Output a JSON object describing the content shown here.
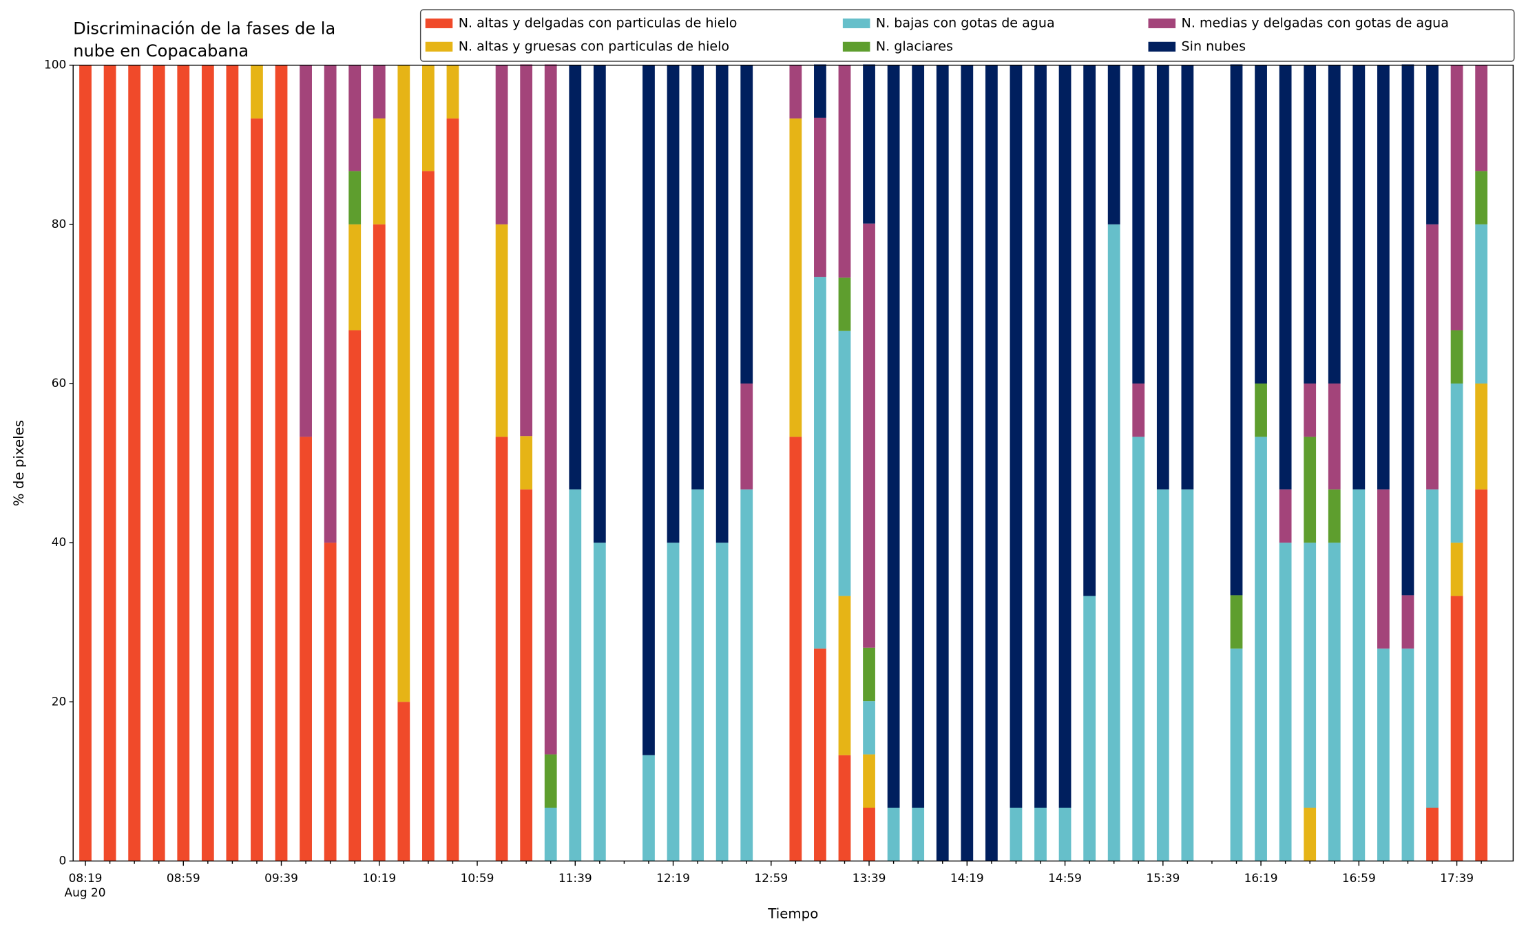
{
  "chart_data": {
    "type": "stacked_bar",
    "title": [
      "Discriminación de la fases de la",
      "nube en Copacabana"
    ],
    "xlabel": "Tiempo",
    "ylabel": "% de pixeles",
    "x_sublabel": "Aug 20",
    "categories": [
      "08:19",
      null,
      null,
      null,
      "08:59",
      null,
      null,
      null,
      "09:39",
      null,
      null,
      null,
      "10:19",
      null,
      null,
      null,
      "10:59",
      null,
      null,
      null,
      "11:39",
      null,
      null,
      null,
      "12:19",
      null,
      null,
      null,
      "12:59",
      null,
      null,
      null,
      "13:39",
      null,
      null,
      null,
      "14:19",
      null,
      null,
      null,
      "14:59",
      null,
      null,
      null,
      "15:39",
      null,
      null,
      null,
      "16:19",
      null,
      null,
      null,
      "16:59",
      null,
      null,
      null,
      "17:39",
      null
    ],
    "xlim": [
      -0.5,
      58.3
    ],
    "ylim": [
      0,
      100
    ],
    "yticks": [
      0,
      20,
      40,
      60,
      80,
      100
    ],
    "legend": "upper right",
    "series": [
      {
        "name": "N. altas y delgadas con particulas de hielo",
        "color": "#f04a2a",
        "values": [
          100,
          100,
          100,
          100,
          100,
          100,
          100,
          93.3,
          100,
          53.3,
          40,
          66.7,
          80,
          20,
          86.7,
          93.3,
          0,
          53.3,
          46.7,
          0,
          0,
          0,
          0,
          0,
          0,
          0,
          0,
          0,
          0,
          53.3,
          26.7,
          13.3,
          6.7,
          0,
          0,
          0,
          0,
          0,
          0,
          0,
          0,
          0,
          0,
          0,
          0,
          0,
          0,
          0,
          0,
          0,
          0,
          0,
          0,
          0,
          0,
          6.7,
          33.3,
          46.7
        ]
      },
      {
        "name": "N. altas y gruesas con particulas de hielo",
        "color": "#e6b416",
        "values": [
          0,
          0,
          0,
          0,
          0,
          0,
          0,
          6.7,
          0,
          0,
          0,
          13.3,
          13.3,
          80,
          13.3,
          6.7,
          0,
          26.7,
          6.7,
          0,
          0,
          0,
          0,
          0,
          0,
          0,
          0,
          0,
          0,
          40,
          0,
          20,
          6.7,
          0,
          0,
          0,
          0,
          0,
          0,
          0,
          0,
          0,
          0,
          0,
          0,
          0,
          0,
          0,
          0,
          0,
          6.7,
          0,
          0,
          0,
          0,
          0,
          6.7,
          13.3
        ]
      },
      {
        "name": "N. bajas con gotas de agua",
        "color": "#66bfca",
        "values": [
          0,
          0,
          0,
          0,
          0,
          0,
          0,
          0,
          0,
          0,
          0,
          0,
          0,
          0,
          0,
          0,
          0,
          0,
          0,
          6.7,
          46.7,
          40,
          0,
          13.3,
          40,
          46.7,
          40,
          46.7,
          0,
          0,
          46.7,
          33.3,
          6.7,
          6.7,
          6.7,
          0,
          0,
          0,
          6.7,
          6.7,
          6.7,
          33.3,
          80,
          53.3,
          46.7,
          46.7,
          0,
          26.7,
          53.3,
          40,
          33.3,
          40,
          46.7,
          26.7,
          26.7,
          40,
          20,
          20
        ]
      },
      {
        "name": "N. glaciares",
        "color": "#5e9e2e",
        "values": [
          0,
          0,
          0,
          0,
          0,
          0,
          0,
          0,
          0,
          0,
          0,
          6.7,
          0,
          0,
          0,
          0,
          0,
          0,
          0,
          6.7,
          0,
          0,
          0,
          0,
          0,
          0,
          0,
          0,
          0,
          0,
          0,
          6.7,
          6.7,
          0,
          0,
          0,
          0,
          0,
          0,
          0,
          0,
          0,
          0,
          0,
          0,
          0,
          0,
          6.7,
          6.7,
          0,
          13.3,
          6.7,
          0,
          0,
          0,
          0,
          6.7,
          6.7
        ]
      },
      {
        "name": "N. medias y delgadas con gotas de agua",
        "color": "#a3447a",
        "values": [
          0,
          0,
          0,
          0,
          0,
          0,
          0,
          0,
          0,
          46.7,
          60,
          13.3,
          6.7,
          0,
          0,
          0,
          0,
          20,
          46.7,
          86.7,
          0,
          0,
          0,
          0,
          0,
          0,
          0,
          13.3,
          0,
          6.7,
          20,
          26.7,
          53.3,
          0,
          0,
          0,
          0,
          0,
          0,
          0,
          0,
          0,
          0,
          6.7,
          0,
          0,
          0,
          0,
          0,
          6.7,
          6.7,
          13.3,
          0,
          20,
          6.7,
          33.3,
          33.3,
          13.3
        ]
      },
      {
        "name": "Sin nubes",
        "color": "#001f5e",
        "values": [
          0,
          0,
          0,
          0,
          0,
          0,
          0,
          0,
          0,
          0,
          0,
          0,
          0,
          0,
          0,
          0,
          0,
          0,
          0,
          0,
          53.3,
          60,
          0,
          86.7,
          60,
          53.3,
          60,
          40,
          0,
          0,
          6.7,
          0,
          20,
          93.3,
          93.3,
          100,
          100,
          100,
          93.3,
          93.3,
          93.3,
          66.7,
          20,
          40,
          53.3,
          53.3,
          0,
          66.7,
          40,
          53.3,
          40,
          40,
          53.3,
          53.3,
          66.7,
          20,
          0,
          0
        ]
      }
    ]
  }
}
